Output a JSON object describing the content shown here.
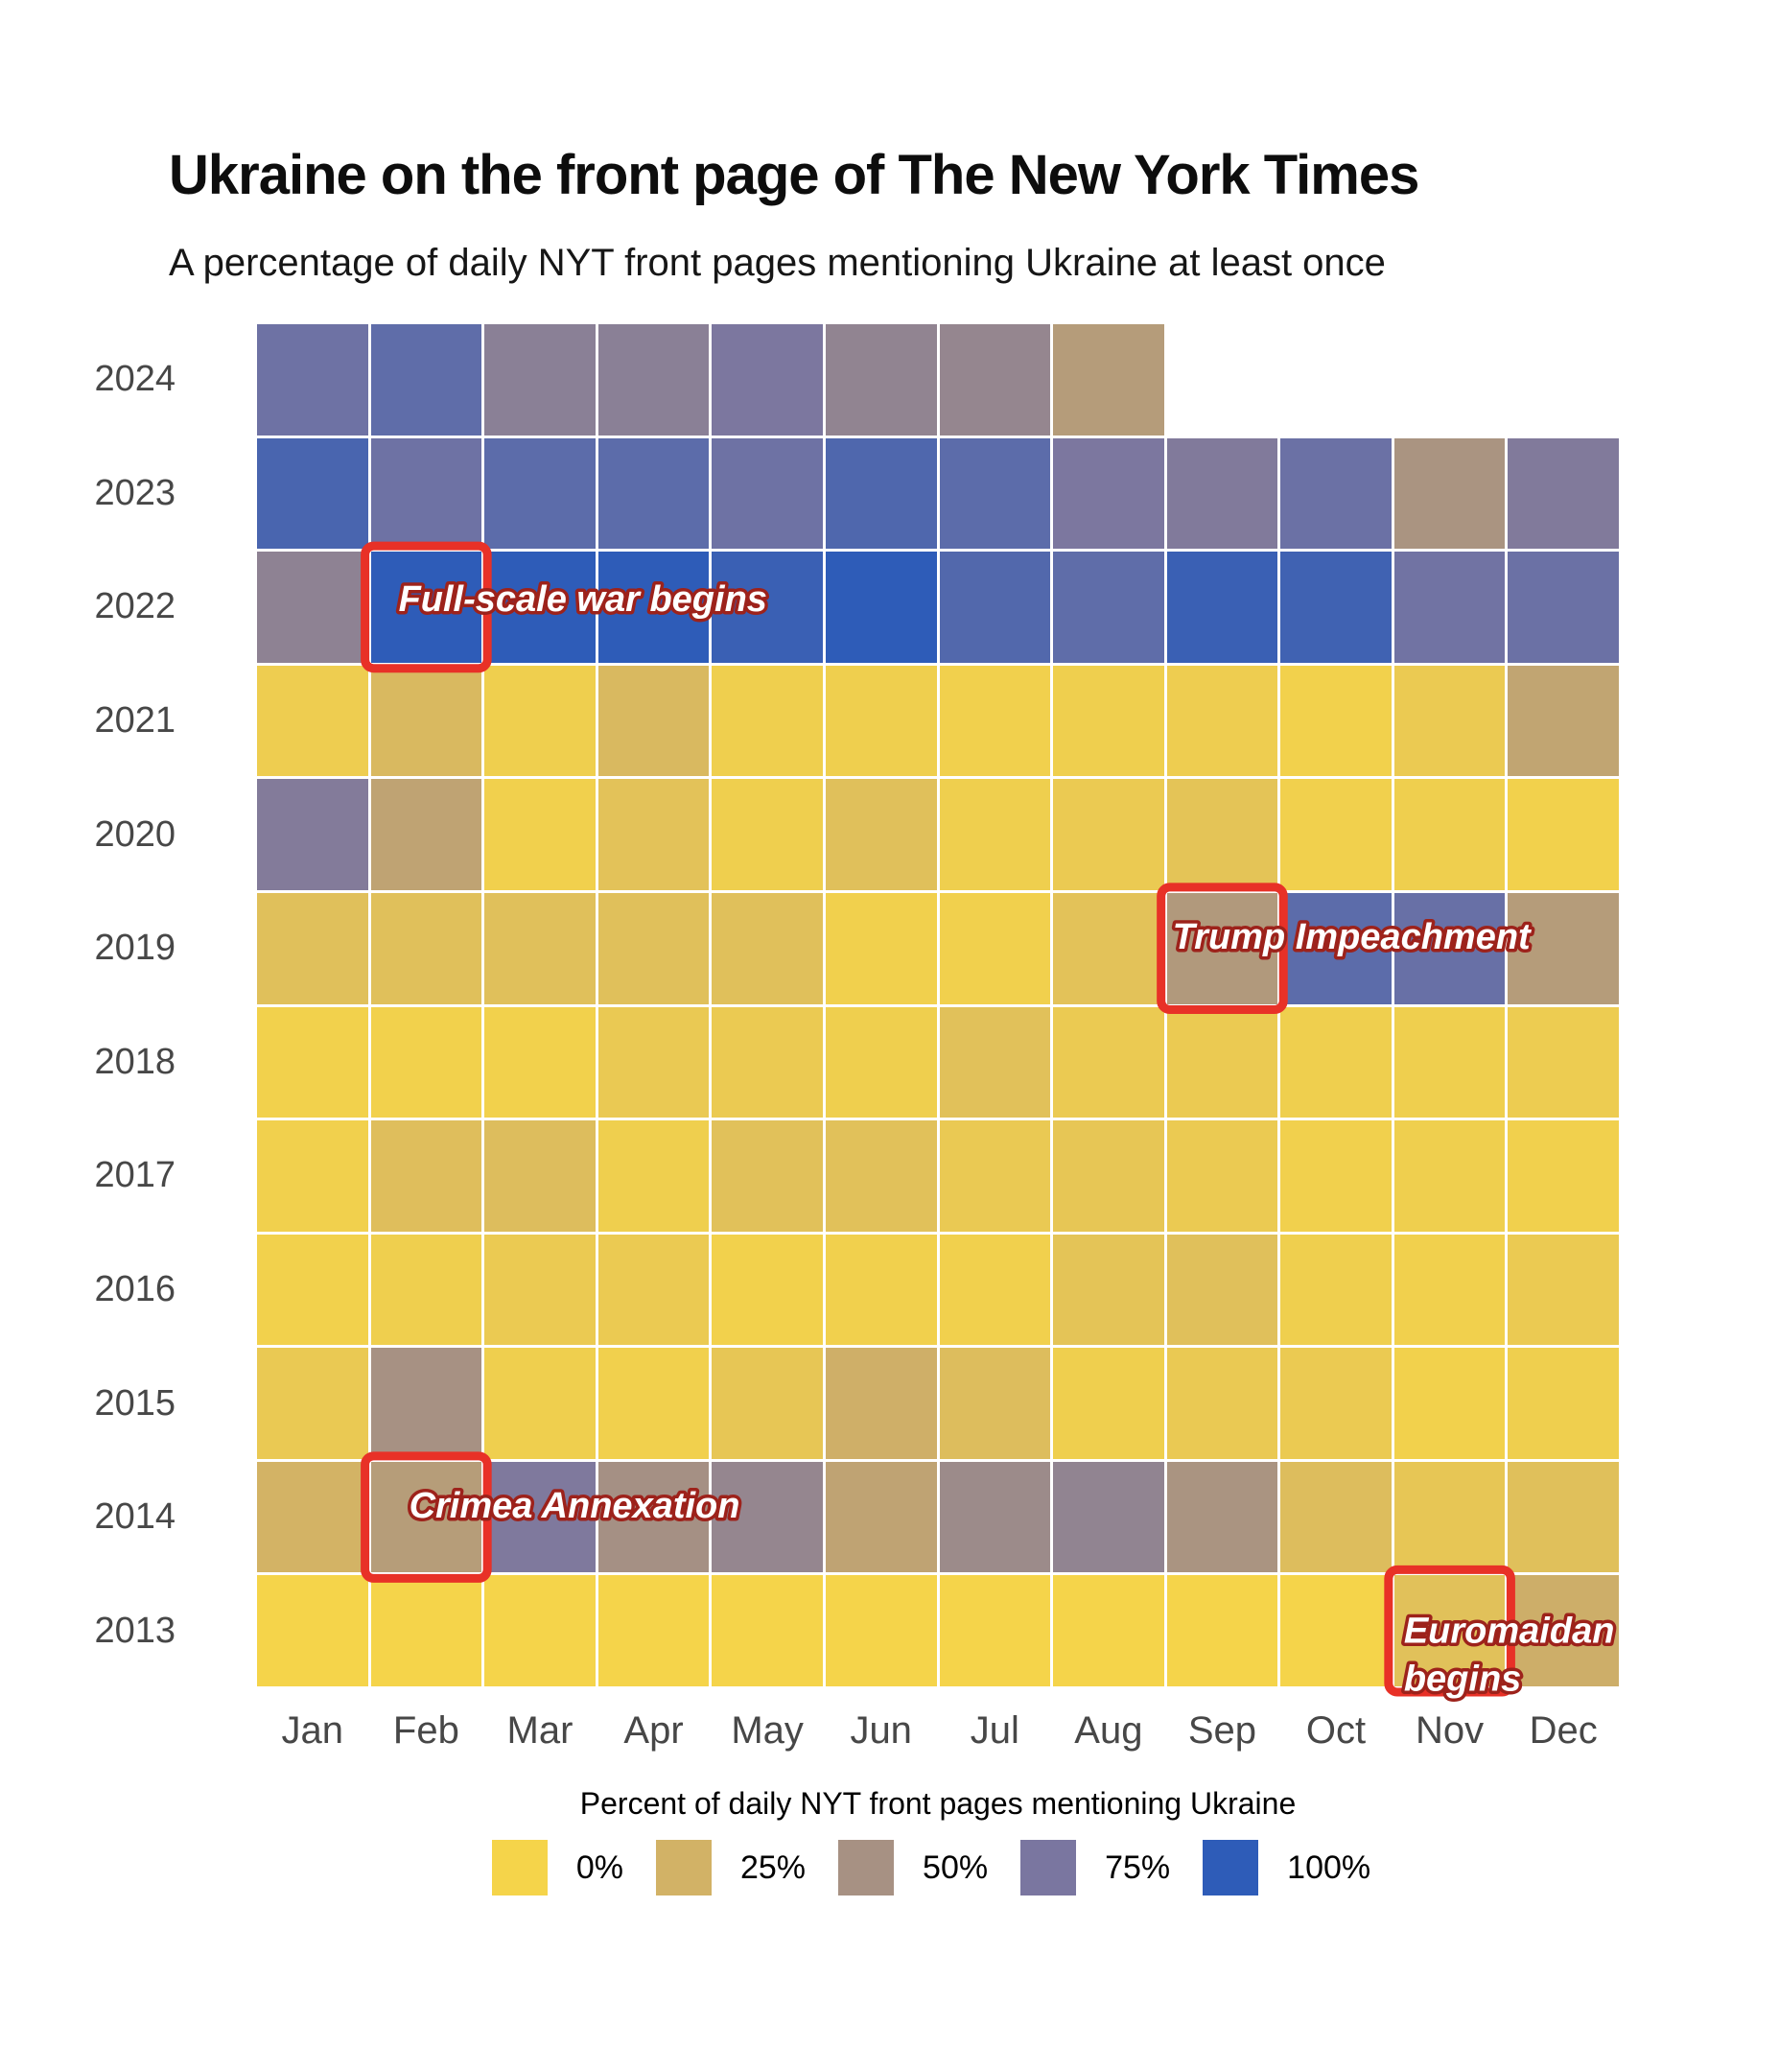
{
  "header": {
    "title": "Ukraine on the front page of The New York Times",
    "subtitle": "A percentage of daily NYT front pages mentioning Ukraine at least once"
  },
  "legend": {
    "title": "Percent of daily NYT front pages mentioning Ukraine",
    "items": [
      {
        "label": "0%",
        "color": "#f5d44a"
      },
      {
        "label": "25%",
        "color": "#d2b266"
      },
      {
        "label": "50%",
        "color": "#a79183"
      },
      {
        "label": "75%",
        "color": "#7a76a0"
      },
      {
        "label": "100%",
        "color": "#2e5cb8"
      }
    ]
  },
  "chart_data": {
    "type": "heatmap",
    "title": "Ukraine on the front page of The New York Times",
    "subtitle": "A percentage of daily NYT front pages mentioning Ukraine at least once",
    "unit": "%",
    "x_categories": [
      "Jan",
      "Feb",
      "Mar",
      "Apr",
      "May",
      "Jun",
      "Jul",
      "Aug",
      "Sep",
      "Oct",
      "Nov",
      "Dec"
    ],
    "y_categories": [
      "2024",
      "2023",
      "2022",
      "2021",
      "2020",
      "2019",
      "2018",
      "2017",
      "2016",
      "2015",
      "2014",
      "2013"
    ],
    "value_domain": [
      0,
      25,
      50,
      75,
      100
    ],
    "palette": [
      "#f5d44a",
      "#d2b266",
      "#a79183",
      "#7a76a0",
      "#2e5cb8"
    ],
    "series": [
      {
        "year": "2024",
        "values": [
          79,
          84,
          66,
          66,
          74,
          62,
          60,
          42,
          null,
          null,
          null,
          null
        ]
      },
      {
        "year": "2023",
        "values": [
          91,
          79,
          85,
          85,
          79,
          89,
          85,
          74,
          71,
          80,
          48,
          71
        ]
      },
      {
        "year": "2022",
        "values": [
          64,
          100,
          100,
          100,
          96,
          100,
          88,
          84,
          96,
          94,
          78,
          80
        ]
      },
      {
        "year": "2021",
        "values": [
          5,
          20,
          4,
          20,
          4,
          4,
          3,
          4,
          5,
          2,
          7,
          35
        ]
      },
      {
        "year": "2020",
        "values": [
          70,
          36,
          3,
          13,
          4,
          15,
          4,
          7,
          12,
          3,
          4,
          2
        ]
      },
      {
        "year": "2019",
        "values": [
          15,
          15,
          15,
          15,
          15,
          3,
          3,
          13,
          44,
          85,
          81,
          42
        ]
      },
      {
        "year": "2018",
        "values": [
          2,
          2,
          2,
          8,
          7,
          4,
          14,
          7,
          7,
          4,
          4,
          6
        ]
      },
      {
        "year": "2017",
        "values": [
          3,
          16,
          17,
          4,
          14,
          14,
          8,
          10,
          7,
          3,
          4,
          3
        ]
      },
      {
        "year": "2016",
        "values": [
          2,
          4,
          7,
          7,
          2,
          3,
          3,
          12,
          15,
          4,
          3,
          7
        ]
      },
      {
        "year": "2015",
        "values": [
          8,
          50,
          4,
          3,
          10,
          27,
          17,
          4,
          8,
          7,
          2,
          4
        ]
      },
      {
        "year": "2014",
        "values": [
          24,
          41,
          72,
          51,
          60,
          36,
          56,
          62,
          48,
          17,
          10,
          15
        ]
      },
      {
        "year": "2013",
        "values": [
          0,
          0,
          0,
          0,
          0,
          0,
          0,
          0,
          0,
          0,
          14,
          28
        ]
      }
    ],
    "annotations": [
      {
        "label": "Full-scale war begins",
        "lines": [
          "Full-scale war begins"
        ],
        "year": "2022",
        "month": "Feb"
      },
      {
        "label": "Trump Impeachment",
        "lines": [
          "Trump Impeachment"
        ],
        "year": "2019",
        "month": "Sep"
      },
      {
        "label": "Crimea Annexation",
        "lines": [
          "Crimea Annexation"
        ],
        "year": "2014",
        "month": "Feb"
      },
      {
        "label": "Euromaidan begins",
        "lines": [
          "Euromaidan",
          "begins"
        ],
        "year": "2013",
        "month": "Nov"
      }
    ],
    "annotation_style": {
      "box_color": "#e83127",
      "text_fill": "#ffffff",
      "text_stroke": "#9d221b"
    },
    "axis_label_color": "#474747",
    "grid_line_color": "#ffffff",
    "legend_position": "bottom"
  }
}
